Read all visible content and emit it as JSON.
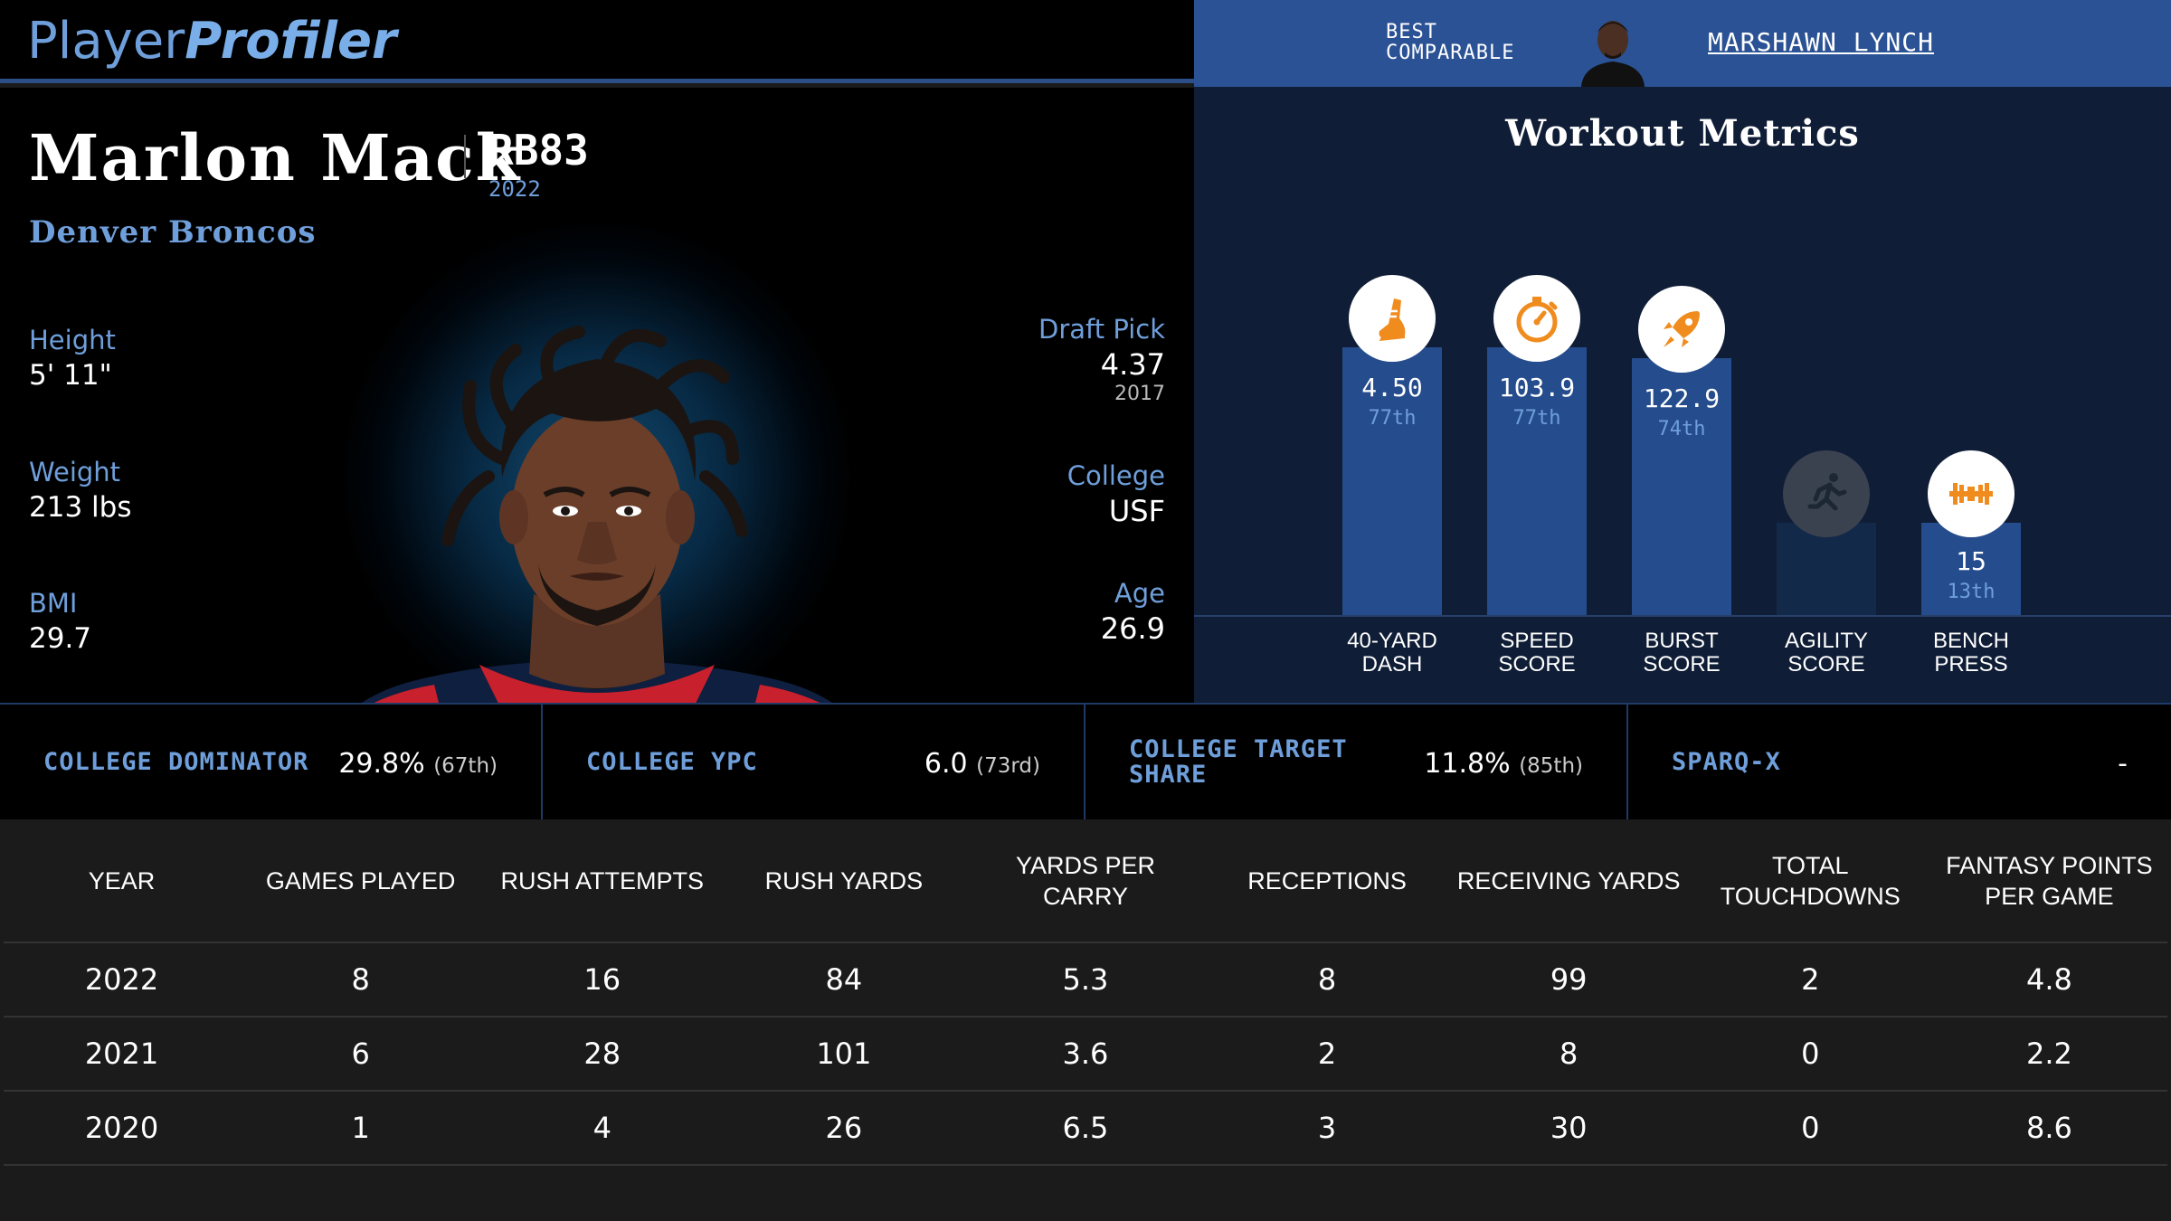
{
  "header": {
    "logo_part1": "Player",
    "logo_part2": "Profiler",
    "best_comparable_line1": "BEST",
    "best_comparable_line2": "COMPARABLE",
    "comparable_name": "MARSHAWN LYNCH"
  },
  "player": {
    "name": "Marlon Mack",
    "position": "RB83",
    "season": "2022",
    "team": "Denver Broncos"
  },
  "bio_left": [
    {
      "label": "Height",
      "value": "5' 11\""
    },
    {
      "label": "Weight",
      "value": "213 lbs"
    },
    {
      "label": "BMI",
      "value": "29.7"
    }
  ],
  "bio_right": [
    {
      "label": "Draft Pick",
      "value": "4.37",
      "sub": "2017"
    },
    {
      "label": "College",
      "value": "USF",
      "sub": ""
    },
    {
      "label": "Age",
      "value": "26.9",
      "sub": ""
    }
  ],
  "workout": {
    "title": "Workout Metrics",
    "metrics": [
      {
        "label_line1": "40-YARD",
        "label_line2": "DASH",
        "value": "4.50",
        "percentile": "77th",
        "percentile_num": 77,
        "icon": "running-shoe-icon"
      },
      {
        "label_line1": "SPEED",
        "label_line2": "SCORE",
        "value": "103.9",
        "percentile": "77th",
        "percentile_num": 77,
        "icon": "stopwatch-icon"
      },
      {
        "label_line1": "BURST",
        "label_line2": "SCORE",
        "value": "122.9",
        "percentile": "74th",
        "percentile_num": 74,
        "icon": "rocket-icon"
      },
      {
        "label_line1": "AGILITY",
        "label_line2": "SCORE",
        "value": "",
        "percentile": "",
        "percentile_num": null,
        "icon": "agility-runner-icon"
      },
      {
        "label_line1": "BENCH",
        "label_line2": "PRESS",
        "value": "15",
        "percentile": "13th",
        "percentile_num": 13,
        "icon": "barbell-icon"
      }
    ]
  },
  "college": [
    {
      "label": "COLLEGE DOMINATOR",
      "value": "29.8%",
      "pct": "(67th)"
    },
    {
      "label": "COLLEGE YPC",
      "value": "6.0",
      "pct": "(73rd)"
    },
    {
      "label_line1": "COLLEGE TARGET",
      "label_line2": "SHARE",
      "value": "11.8%",
      "pct": "(85th)"
    },
    {
      "label": "SPARQ-X",
      "value": "-",
      "pct": ""
    }
  ],
  "stats_table": {
    "headers": [
      "YEAR",
      "GAMES PLAYED",
      "RUSH ATTEMPTS",
      "RUSH YARDS",
      "YARDS PER CARRY",
      "RECEPTIONS",
      "RECEIVING YARDS",
      "TOTAL TOUCHDOWNS",
      "FANTASY POINTS PER GAME"
    ],
    "rows": [
      [
        "2022",
        "8",
        "16",
        "84",
        "5.3",
        "8",
        "99",
        "2",
        "4.8"
      ],
      [
        "2021",
        "6",
        "28",
        "101",
        "3.6",
        "2",
        "8",
        "0",
        "2.2"
      ],
      [
        "2020",
        "1",
        "4",
        "26",
        "6.5",
        "3",
        "30",
        "0",
        "8.6"
      ]
    ]
  },
  "colors": {
    "accent_blue": "#6f9fdb",
    "header_blue": "#2a5294",
    "bar_blue": "#254c8c",
    "icon_orange": "#f08c1e"
  }
}
